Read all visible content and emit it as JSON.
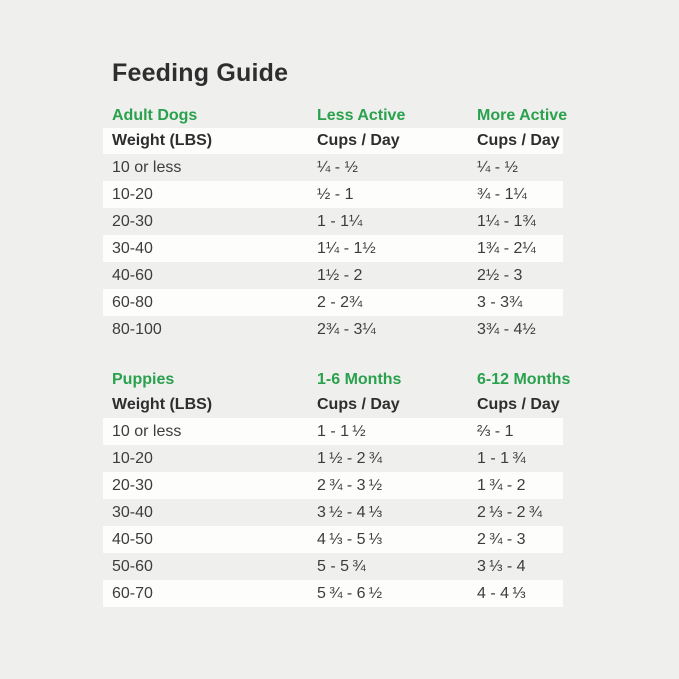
{
  "title": "Feeding Guide",
  "colors": {
    "background": "#efefee",
    "row_highlight": "#fdfdfc",
    "accent_green": "#2aa14d",
    "text_dark": "#2e2e2e",
    "text_body": "#3d3d3d"
  },
  "adult_table": {
    "section_title": "Adult Dogs",
    "col2_title": "Less Active",
    "col3_title": "More Active",
    "header": {
      "col1": "Weight (LBS)",
      "col2": "Cups / Day",
      "col3": "Cups / Day"
    },
    "rows": [
      {
        "weight": "10 or less",
        "col2": "¼ - ½",
        "col3": "¼ - ½"
      },
      {
        "weight": "10-20",
        "col2": "½ - 1",
        "col3": "¾ - 1¼"
      },
      {
        "weight": "20-30",
        "col2": "1 - 1¼",
        "col3": "1¼ - 1¾"
      },
      {
        "weight": "30-40",
        "col2": "1¼ - 1½",
        "col3": "1¾ - 2¼"
      },
      {
        "weight": "40-60",
        "col2": "1½ - 2",
        "col3": "2½ - 3"
      },
      {
        "weight": "60-80",
        "col2": "2 - 2¾",
        "col3": "3 - 3¾"
      },
      {
        "weight": "80-100",
        "col2": "2¾ - 3¼",
        "col3": "3¾ - 4½"
      }
    ]
  },
  "puppy_table": {
    "section_title": "Puppies",
    "col2_title": "1-6 Months",
    "col3_title": "6-12 Months",
    "header": {
      "col1": "Weight (LBS)",
      "col2": "Cups / Day",
      "col3": "Cups / Day"
    },
    "rows": [
      {
        "weight": "10 or less",
        "col2": "1 - 1 ½",
        "col3": "⅔ - 1"
      },
      {
        "weight": "10-20",
        "col2": "1 ½ - 2 ¾",
        "col3": "1 - 1 ¾"
      },
      {
        "weight": "20-30",
        "col2": "2 ¾ - 3 ½",
        "col3": "1 ¾ - 2"
      },
      {
        "weight": "30-40",
        "col2": "3 ½ - 4 ⅓",
        "col3": "2 ⅓ - 2 ¾"
      },
      {
        "weight": "40-50",
        "col2": "4 ⅓ - 5 ⅓",
        "col3": "2 ¾ - 3"
      },
      {
        "weight": "50-60",
        "col2": "5 - 5 ¾",
        "col3": "3 ⅓ - 4"
      },
      {
        "weight": "60-70",
        "col2": "5 ¾ - 6 ½",
        "col3": "4 - 4 ⅓"
      }
    ]
  },
  "chart_data": [
    {
      "type": "table",
      "title": "Adult Dogs",
      "columns": [
        "Weight (LBS)",
        "Less Active Cups / Day",
        "More Active Cups / Day"
      ],
      "rows": [
        [
          "10 or less",
          "¼ - ½",
          "¼ - ½"
        ],
        [
          "10-20",
          "½ - 1",
          "¾ - 1¼"
        ],
        [
          "20-30",
          "1 - 1¼",
          "1¼ - 1¾"
        ],
        [
          "30-40",
          "1¼ - 1½",
          "1¾ - 2¼"
        ],
        [
          "40-60",
          "1½ - 2",
          "2½ - 3"
        ],
        [
          "60-80",
          "2 - 2¾",
          "3 - 3¾"
        ],
        [
          "80-100",
          "2¾ - 3¼",
          "3¾ - 4½"
        ]
      ]
    },
    {
      "type": "table",
      "title": "Puppies",
      "columns": [
        "Weight (LBS)",
        "1-6 Months Cups / Day",
        "6-12 Months Cups / Day"
      ],
      "rows": [
        [
          "10 or less",
          "1 - 1½",
          "⅔ - 1"
        ],
        [
          "10-20",
          "1½ - 2¾",
          "1 - 1¾"
        ],
        [
          "20-30",
          "2¾ - 3½",
          "1¾ - 2"
        ],
        [
          "30-40",
          "3½ - 4⅓",
          "2⅓ - 2¾"
        ],
        [
          "40-50",
          "4⅓ - 5⅓",
          "2¾ - 3"
        ],
        [
          "50-60",
          "5 - 5¾",
          "3⅓ - 4"
        ],
        [
          "60-70",
          "5¾ - 6½",
          "4 - 4⅓"
        ]
      ]
    }
  ]
}
